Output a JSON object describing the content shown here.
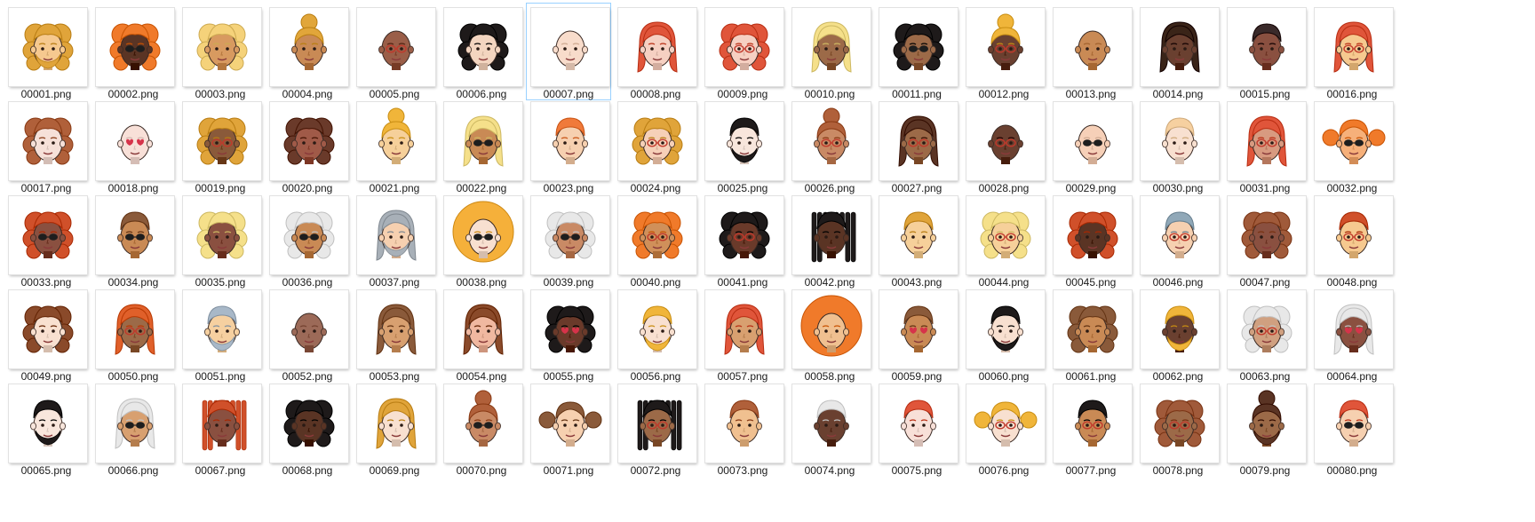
{
  "files": [
    {
      "name": "00001.png",
      "hair": "#e0a43a",
      "skin": "#f6c98f",
      "style": "curly",
      "extra": "beard"
    },
    {
      "name": "00002.png",
      "hair": "#f07a2a",
      "skin": "#5a3424",
      "style": "curly",
      "extra": "sunglasses"
    },
    {
      "name": "00003.png",
      "hair": "#f5d27a",
      "skin": "#d89a60",
      "style": "curly",
      "extra": "none"
    },
    {
      "name": "00004.png",
      "hair": "#e1a63a",
      "skin": "#c98a55",
      "style": "bun",
      "extra": "none"
    },
    {
      "name": "00005.png",
      "hair": "#7a4a3a",
      "skin": "#9a5e48",
      "style": "bald",
      "extra": "glasses"
    },
    {
      "name": "00006.png",
      "hair": "#1e1a1a",
      "skin": "#f3d5c0",
      "style": "curly",
      "extra": "none"
    },
    {
      "name": "00007.png",
      "hair": "#f5d0b8",
      "skin": "#f8dccb",
      "style": "bald",
      "extra": "none"
    },
    {
      "name": "00008.png",
      "hair": "#e0553a",
      "skin": "#f6d0c2",
      "style": "long",
      "extra": "none"
    },
    {
      "name": "00009.png",
      "hair": "#e0553a",
      "skin": "#f6d0c2",
      "style": "curly",
      "extra": "glasses"
    },
    {
      "name": "00010.png",
      "hair": "#f5e08a",
      "skin": "#9c6a48",
      "style": "long",
      "extra": "none"
    },
    {
      "name": "00011.png",
      "hair": "#1e1a1a",
      "skin": "#9c6a48",
      "style": "curly",
      "extra": "sunglasses"
    },
    {
      "name": "00012.png",
      "hair": "#f0b53a",
      "skin": "#6a4030",
      "style": "bun",
      "extra": "glasses"
    },
    {
      "name": "00013.png",
      "hair": "#c98a55",
      "skin": "#c98a55",
      "style": "bald",
      "extra": "none"
    },
    {
      "name": "00014.png",
      "hair": "#3a2418",
      "skin": "#6a4030",
      "style": "long",
      "extra": "none"
    },
    {
      "name": "00015.png",
      "hair": "#3a2a2a",
      "skin": "#8a5040",
      "style": "short",
      "extra": "none"
    },
    {
      "name": "00016.png",
      "hair": "#e0553a",
      "skin": "#f6c98f",
      "style": "long",
      "extra": "glasses"
    },
    {
      "name": "00017.png",
      "hair": "#b0603a",
      "skin": "#f6e0d8",
      "style": "curly",
      "extra": "none"
    },
    {
      "name": "00018.png",
      "hair": "#f8e0d8",
      "skin": "#f8e0d8",
      "style": "bald",
      "extra": "hearts"
    },
    {
      "name": "00019.png",
      "hair": "#e0a43a",
      "skin": "#8a5a3a",
      "style": "curly",
      "extra": "glasses"
    },
    {
      "name": "00020.png",
      "hair": "#6a3a2a",
      "skin": "#a05a48",
      "style": "curly",
      "extra": "none"
    },
    {
      "name": "00021.png",
      "hair": "#f0b53a",
      "skin": "#f6d09a",
      "style": "bun",
      "extra": "none"
    },
    {
      "name": "00022.png",
      "hair": "#f5e08a",
      "skin": "#c98a55",
      "style": "long",
      "extra": "sunglasses"
    },
    {
      "name": "00023.png",
      "hair": "#f07a3a",
      "skin": "#f6d0b0",
      "style": "short",
      "extra": "none"
    },
    {
      "name": "00024.png",
      "hair": "#e0a43a",
      "skin": "#f6d0b8",
      "style": "curly",
      "extra": "glasses"
    },
    {
      "name": "00025.png",
      "hair": "#1e1a1a",
      "skin": "#f8e6dc",
      "style": "short",
      "extra": "beard"
    },
    {
      "name": "00026.png",
      "hair": "#b0603a",
      "skin": "#c98a65",
      "style": "bun",
      "extra": "glasses"
    },
    {
      "name": "00027.png",
      "hair": "#5a3424",
      "skin": "#9c6a48",
      "style": "long",
      "extra": "glasses"
    },
    {
      "name": "00028.png",
      "hair": "#4a2a20",
      "skin": "#6a4030",
      "style": "bald",
      "extra": "glasses"
    },
    {
      "name": "00029.png",
      "hair": "#f6d0b8",
      "skin": "#f6d0b8",
      "style": "bald",
      "extra": "sunglasses"
    },
    {
      "name": "00030.png",
      "hair": "#f6d0a0",
      "skin": "#f8e0d0",
      "style": "short",
      "extra": "none"
    },
    {
      "name": "00031.png",
      "hair": "#e0553a",
      "skin": "#d89a80",
      "style": "long",
      "extra": "glasses"
    },
    {
      "name": "00032.png",
      "hair": "#f07a2a",
      "skin": "#f6b07a",
      "style": "pigtails",
      "extra": "sunglasses"
    },
    {
      "name": "00033.png",
      "hair": "#d0502a",
      "skin": "#8a5040",
      "style": "curly",
      "extra": "sunglasses"
    },
    {
      "name": "00034.png",
      "hair": "#8a5a3a",
      "skin": "#c98a55",
      "style": "short",
      "extra": "sunglasses"
    },
    {
      "name": "00035.png",
      "hair": "#f5e08a",
      "skin": "#8a5040",
      "style": "curly",
      "extra": "none"
    },
    {
      "name": "00036.png",
      "hair": "#e8e8e8",
      "skin": "#c98a55",
      "style": "curly",
      "extra": "sunglasses"
    },
    {
      "name": "00037.png",
      "hair": "#a8b0b8",
      "skin": "#f6d0b0",
      "style": "long",
      "extra": "beard"
    },
    {
      "name": "00038.png",
      "hair": "#f5b03a",
      "skin": "#f8e0d0",
      "style": "afro",
      "extra": "sunglasses"
    },
    {
      "name": "00039.png",
      "hair": "#e8e8e8",
      "skin": "#c98a65",
      "style": "curly",
      "extra": "sunglasses"
    },
    {
      "name": "00040.png",
      "hair": "#f07a2a",
      "skin": "#d0905a",
      "style": "curly",
      "extra": "glasses"
    },
    {
      "name": "00041.png",
      "hair": "#1e1a1a",
      "skin": "#6a3a2a",
      "style": "curly",
      "extra": "glasses"
    },
    {
      "name": "00042.png",
      "hair": "#1e1a1a",
      "skin": "#5a3424",
      "style": "locs",
      "extra": "none"
    },
    {
      "name": "00043.png",
      "hair": "#e0a43a",
      "skin": "#f6d09a",
      "style": "short",
      "extra": "none"
    },
    {
      "name": "00044.png",
      "hair": "#f5e08a",
      "skin": "#f6d09a",
      "style": "curly",
      "extra": "glasses"
    },
    {
      "name": "00045.png",
      "hair": "#d0502a",
      "skin": "#5a3424",
      "style": "curly",
      "extra": "none"
    },
    {
      "name": "00046.png",
      "hair": "#90a8b8",
      "skin": "#f6d0b0",
      "style": "short",
      "extra": "glasses"
    },
    {
      "name": "00047.png",
      "hair": "#a05a3a",
      "skin": "#8a5040",
      "style": "curly",
      "extra": "none"
    },
    {
      "name": "00048.png",
      "hair": "#d0502a",
      "skin": "#f6c98f",
      "style": "short",
      "extra": "glasses"
    },
    {
      "name": "00049.png",
      "hair": "#8a4a2a",
      "skin": "#f8e0d0",
      "style": "curly",
      "extra": "none"
    },
    {
      "name": "00050.png",
      "hair": "#e0602a",
      "skin": "#9c6a48",
      "style": "long",
      "extra": "glasses"
    },
    {
      "name": "00051.png",
      "hair": "#a8b8c8",
      "skin": "#f6d0a0",
      "style": "short",
      "extra": "beard"
    },
    {
      "name": "00052.png",
      "hair": "#9c6a58",
      "skin": "#9c6a58",
      "style": "bald",
      "extra": "none"
    },
    {
      "name": "00053.png",
      "hair": "#8a5a3a",
      "skin": "#d8a070",
      "style": "long",
      "extra": "none"
    },
    {
      "name": "00054.png",
      "hair": "#8a4a2a",
      "skin": "#f0b8a0",
      "style": "long",
      "extra": "none"
    },
    {
      "name": "00055.png",
      "hair": "#1e1a1a",
      "skin": "#6a3a2a",
      "style": "curly",
      "extra": "hearts"
    },
    {
      "name": "00056.png",
      "hair": "#f0b53a",
      "skin": "#f8e0d0",
      "style": "short",
      "extra": "beard"
    },
    {
      "name": "00057.png",
      "hair": "#e0553a",
      "skin": "#d8a070",
      "style": "long",
      "extra": "none"
    },
    {
      "name": "00058.png",
      "hair": "#f07a2a",
      "skin": "#f0c090",
      "style": "afro",
      "extra": "none"
    },
    {
      "name": "00059.png",
      "hair": "#8a5a3a",
      "skin": "#c98a55",
      "style": "short",
      "extra": "hearts"
    },
    {
      "name": "00060.png",
      "hair": "#1e1a1a",
      "skin": "#f8e0d0",
      "style": "short",
      "extra": "beard"
    },
    {
      "name": "00061.png",
      "hair": "#8a5a3a",
      "skin": "#c98a55",
      "style": "curly",
      "extra": "none"
    },
    {
      "name": "00062.png",
      "hair": "#f0b53a",
      "skin": "#6a4030",
      "style": "short",
      "extra": "beard"
    },
    {
      "name": "00063.png",
      "hair": "#e8e8e8",
      "skin": "#d0a080",
      "style": "curly",
      "extra": "glasses"
    },
    {
      "name": "00064.png",
      "hair": "#e8e8e8",
      "skin": "#8a5040",
      "style": "long",
      "extra": "hearts"
    },
    {
      "name": "00065.png",
      "hair": "#1e1a1a",
      "skin": "#f8e6dc",
      "style": "short",
      "extra": "beard"
    },
    {
      "name": "00066.png",
      "hair": "#e8e8e8",
      "skin": "#d8a070",
      "style": "long",
      "extra": "sunglasses"
    },
    {
      "name": "00067.png",
      "hair": "#d0502a",
      "skin": "#8a5040",
      "style": "locs",
      "extra": "none"
    },
    {
      "name": "00068.png",
      "hair": "#1e1a1a",
      "skin": "#5a3424",
      "style": "curly",
      "extra": "none"
    },
    {
      "name": "00069.png",
      "hair": "#e0a43a",
      "skin": "#f8e0d0",
      "style": "long",
      "extra": "none"
    },
    {
      "name": "00070.png",
      "hair": "#b0603a",
      "skin": "#c98a65",
      "style": "bun",
      "extra": "sunglasses"
    },
    {
      "name": "00071.png",
      "hair": "#8a5a3a",
      "skin": "#f6d0b0",
      "style": "pigtails",
      "extra": "none"
    },
    {
      "name": "00072.png",
      "hair": "#1e1a1a",
      "skin": "#9c6a48",
      "style": "locs",
      "extra": "glasses"
    },
    {
      "name": "00073.png",
      "hair": "#b0603a",
      "skin": "#f0c090",
      "style": "short",
      "extra": "none"
    },
    {
      "name": "00074.png",
      "hair": "#e8e8e8",
      "skin": "#6a4030",
      "style": "short",
      "extra": "none"
    },
    {
      "name": "00075.png",
      "hair": "#e0553a",
      "skin": "#f8e0d8",
      "style": "short",
      "extra": "none"
    },
    {
      "name": "00076.png",
      "hair": "#f0b53a",
      "skin": "#f8e0d0",
      "style": "pigtails",
      "extra": "glasses"
    },
    {
      "name": "00077.png",
      "hair": "#1e1a1a",
      "skin": "#c98a55",
      "style": "short",
      "extra": "glasses"
    },
    {
      "name": "00078.png",
      "hair": "#a05a3a",
      "skin": "#9c6a48",
      "style": "curly",
      "extra": "glasses"
    },
    {
      "name": "00079.png",
      "hair": "#5a3424",
      "skin": "#9c6a48",
      "style": "bun",
      "extra": "beard"
    },
    {
      "name": "00080.png",
      "hair": "#e0553a",
      "skin": "#f6d0b0",
      "style": "short",
      "extra": "sunglasses"
    }
  ],
  "selected_file": "00007.png",
  "selection_border_color": "#99d1ff"
}
